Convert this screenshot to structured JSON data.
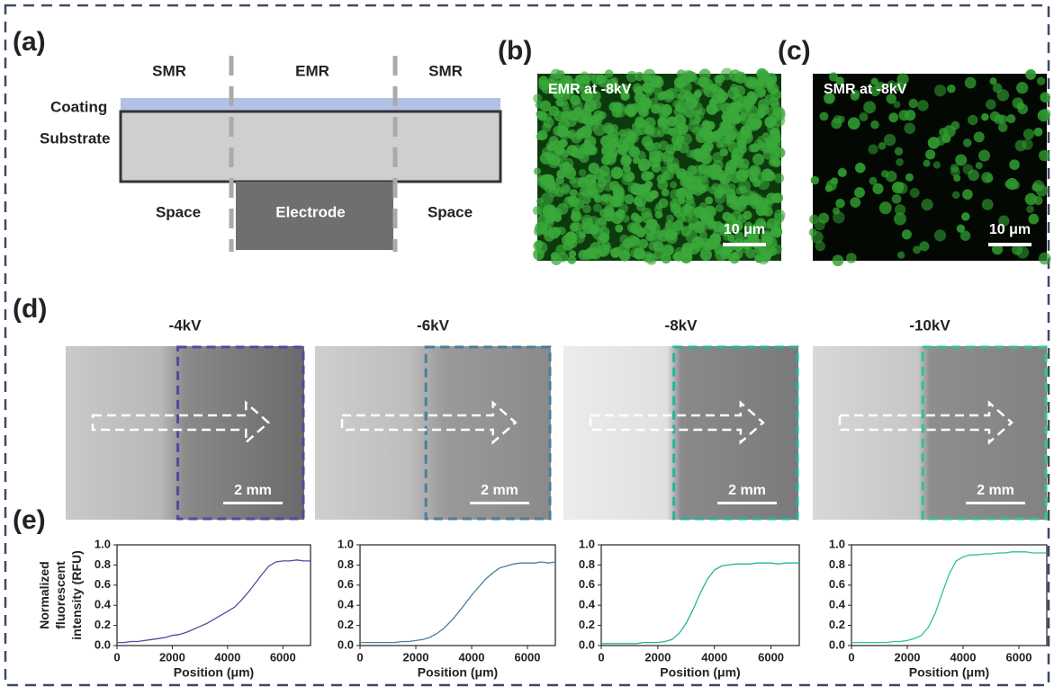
{
  "panel_labels": [
    "(a)",
    "(b)",
    "(c)",
    "(d)",
    "(e)"
  ],
  "schematic": {
    "regions": [
      "SMR",
      "EMR",
      "SMR"
    ],
    "layers": [
      "Coating",
      "Substrate"
    ],
    "bottom": [
      "Space",
      "Electrode",
      "Space"
    ]
  },
  "micrographs": [
    {
      "caption": "EMR at -8kV",
      "scale_bar": "10 μm"
    },
    {
      "caption": "SMR at -8kV",
      "scale_bar": "10 μm"
    }
  ],
  "scale_bars": [
    "2 mm",
    "2 mm",
    "2 mm",
    "2 mm"
  ],
  "chart_data": [
    {
      "type": "line",
      "title": "-4kV",
      "y_label": "Normalized fluorescent intensity (RFU)",
      "x_label": "Position (μm)",
      "color": "#55489e",
      "x": [
        0,
        250,
        500,
        750,
        1000,
        1250,
        1500,
        1750,
        2000,
        2250,
        2500,
        2750,
        3000,
        3250,
        3500,
        3750,
        4000,
        4250,
        4500,
        4750,
        5000,
        5250,
        5500,
        5750,
        6000,
        6250,
        6500,
        6750,
        7000
      ],
      "values": [
        0.03,
        0.03,
        0.04,
        0.04,
        0.05,
        0.06,
        0.07,
        0.08,
        0.1,
        0.11,
        0.13,
        0.16,
        0.19,
        0.22,
        0.26,
        0.3,
        0.34,
        0.38,
        0.45,
        0.53,
        0.62,
        0.71,
        0.79,
        0.83,
        0.84,
        0.84,
        0.85,
        0.84,
        0.84
      ],
      "xlim": [
        0,
        7000
      ],
      "ylim": [
        0,
        1
      ],
      "xticks": [
        0,
        2000,
        4000,
        6000
      ],
      "yticks": [
        {
          "value": 0,
          "label": "0.0"
        },
        0.2,
        0.4,
        0.6,
        0.8,
        {
          "value": 1,
          "label": "1.0"
        }
      ]
    },
    {
      "type": "line",
      "title": "-6kV",
      "x_label": "Position (μm)",
      "color": "#4a7d9c",
      "x": [
        0,
        250,
        500,
        750,
        1000,
        1250,
        1500,
        1750,
        2000,
        2250,
        2500,
        2750,
        3000,
        3250,
        3500,
        3750,
        4000,
        4250,
        4500,
        4750,
        5000,
        5250,
        5500,
        5750,
        6000,
        6250,
        6500,
        6750,
        7000
      ],
      "values": [
        0.03,
        0.03,
        0.03,
        0.03,
        0.03,
        0.03,
        0.04,
        0.04,
        0.05,
        0.06,
        0.08,
        0.12,
        0.17,
        0.24,
        0.32,
        0.41,
        0.5,
        0.58,
        0.66,
        0.72,
        0.77,
        0.79,
        0.81,
        0.82,
        0.82,
        0.82,
        0.83,
        0.82,
        0.83
      ],
      "xlim": [
        0,
        7000
      ],
      "ylim": [
        0,
        1
      ],
      "xticks": [
        0,
        2000,
        4000,
        6000
      ],
      "yticks": [
        {
          "value": 0,
          "label": "0.0"
        },
        0.2,
        0.4,
        0.6,
        0.8,
        {
          "value": 1,
          "label": "1.0"
        }
      ]
    },
    {
      "type": "line",
      "title": "-8kV",
      "x_label": "Position (μm)",
      "color": "#25b39b",
      "x": [
        0,
        250,
        500,
        750,
        1000,
        1250,
        1500,
        1750,
        2000,
        2250,
        2500,
        2750,
        3000,
        3250,
        3500,
        3750,
        4000,
        4250,
        4500,
        4750,
        5000,
        5250,
        5500,
        5750,
        6000,
        6250,
        6500,
        6750,
        7000
      ],
      "values": [
        0.02,
        0.02,
        0.02,
        0.02,
        0.02,
        0.02,
        0.03,
        0.03,
        0.03,
        0.04,
        0.06,
        0.12,
        0.22,
        0.36,
        0.52,
        0.66,
        0.75,
        0.79,
        0.8,
        0.81,
        0.81,
        0.81,
        0.82,
        0.82,
        0.82,
        0.81,
        0.82,
        0.82,
        0.82
      ],
      "xlim": [
        0,
        7000
      ],
      "ylim": [
        0,
        1
      ],
      "xticks": [
        0,
        2000,
        4000,
        6000
      ],
      "yticks": [
        {
          "value": 0,
          "label": "0.0"
        },
        0.2,
        0.4,
        0.6,
        0.8,
        {
          "value": 1,
          "label": "1.0"
        }
      ]
    },
    {
      "type": "line",
      "title": "-10kV",
      "x_label": "Position (μm)",
      "color": "#2fc48a",
      "x": [
        0,
        250,
        500,
        750,
        1000,
        1250,
        1500,
        1750,
        2000,
        2250,
        2500,
        2750,
        3000,
        3250,
        3500,
        3750,
        4000,
        4250,
        4500,
        4750,
        5000,
        5250,
        5500,
        5750,
        6000,
        6250,
        6500,
        6750,
        7000
      ],
      "values": [
        0.03,
        0.03,
        0.03,
        0.03,
        0.03,
        0.03,
        0.04,
        0.04,
        0.05,
        0.07,
        0.1,
        0.18,
        0.32,
        0.52,
        0.71,
        0.84,
        0.88,
        0.9,
        0.9,
        0.91,
        0.91,
        0.92,
        0.92,
        0.93,
        0.93,
        0.93,
        0.92,
        0.92,
        0.92
      ],
      "xlim": [
        0,
        7000
      ],
      "ylim": [
        0,
        1
      ],
      "xticks": [
        0,
        2000,
        4000,
        6000
      ],
      "yticks": [
        {
          "value": 0,
          "label": "0.0"
        },
        0.2,
        0.4,
        0.6,
        0.8,
        {
          "value": 1,
          "label": "1.0"
        }
      ]
    }
  ]
}
